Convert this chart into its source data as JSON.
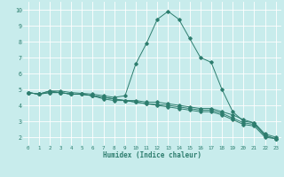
{
  "xlabel": "Humidex (Indice chaleur)",
  "ylabel": "",
  "bg_color": "#c8ecec",
  "grid_color": "#ffffff",
  "line_color": "#2d7d6e",
  "xlim": [
    -0.5,
    23.5
  ],
  "ylim": [
    1.5,
    10.5
  ],
  "x_ticks": [
    0,
    1,
    2,
    3,
    4,
    5,
    6,
    7,
    8,
    9,
    10,
    11,
    12,
    13,
    14,
    15,
    16,
    17,
    18,
    19,
    20,
    21,
    22,
    23
  ],
  "y_ticks": [
    2,
    3,
    4,
    5,
    6,
    7,
    8,
    9,
    10
  ],
  "line1_x": [
    0,
    1,
    2,
    3,
    4,
    5,
    6,
    7,
    8,
    9,
    10,
    11,
    12,
    13,
    14,
    15,
    16,
    17,
    18,
    19,
    20,
    21,
    22,
    23
  ],
  "line1_y": [
    4.8,
    4.7,
    4.9,
    4.9,
    4.8,
    4.75,
    4.7,
    4.6,
    4.5,
    4.6,
    6.6,
    7.9,
    9.4,
    9.9,
    9.4,
    8.2,
    7.0,
    6.7,
    5.0,
    3.6,
    3.0,
    2.9,
    2.1,
    1.9
  ],
  "line2_x": [
    0,
    1,
    2,
    3,
    4,
    5,
    6,
    7,
    8,
    9,
    10,
    11,
    12,
    13,
    14,
    15,
    16,
    17,
    18,
    19,
    20,
    21,
    22,
    23
  ],
  "line2_y": [
    4.8,
    4.7,
    4.8,
    4.8,
    4.7,
    4.7,
    4.6,
    4.5,
    4.4,
    4.3,
    4.3,
    4.2,
    4.2,
    4.1,
    4.0,
    3.9,
    3.8,
    3.8,
    3.6,
    3.4,
    3.1,
    2.9,
    2.2,
    2.0
  ],
  "line3_x": [
    0,
    1,
    2,
    3,
    4,
    5,
    6,
    7,
    8,
    9,
    10,
    11,
    12,
    13,
    14,
    15,
    16,
    17,
    18,
    19,
    20,
    21,
    22,
    23
  ],
  "line3_y": [
    4.8,
    4.7,
    4.8,
    4.8,
    4.7,
    4.7,
    4.6,
    4.5,
    4.4,
    4.3,
    4.2,
    4.1,
    4.05,
    4.0,
    3.9,
    3.8,
    3.7,
    3.7,
    3.5,
    3.2,
    2.9,
    2.8,
    2.1,
    1.9
  ],
  "line4_x": [
    0,
    1,
    2,
    3,
    4,
    5,
    6,
    7,
    8,
    9,
    10,
    11,
    12,
    13,
    14,
    15,
    16,
    17,
    18,
    19,
    20,
    21,
    22,
    23
  ],
  "line4_y": [
    4.8,
    4.7,
    4.9,
    4.8,
    4.7,
    4.7,
    4.6,
    4.4,
    4.3,
    4.3,
    4.2,
    4.1,
    4.0,
    3.9,
    3.8,
    3.7,
    3.6,
    3.6,
    3.4,
    3.1,
    2.8,
    2.7,
    2.0,
    1.9
  ]
}
